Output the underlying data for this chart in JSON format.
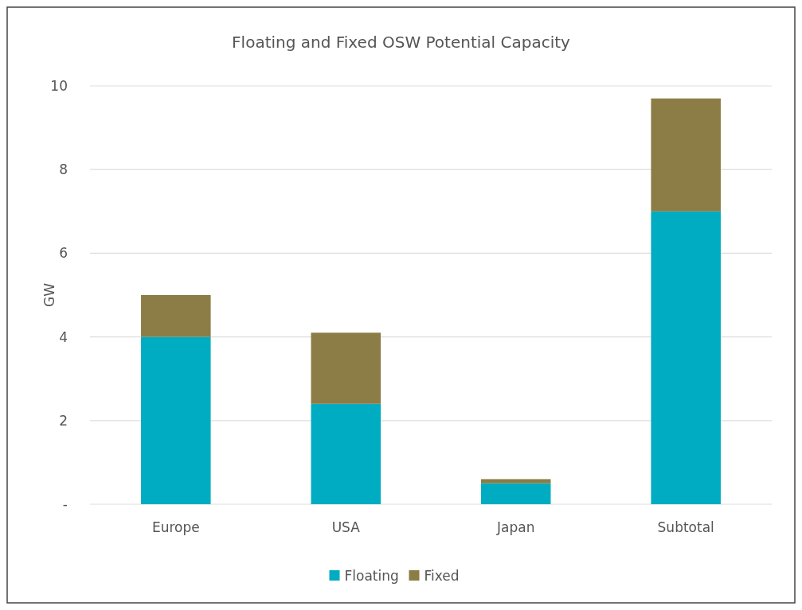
{
  "chart_data": {
    "type": "bar",
    "title": "Floating and Fixed OSW Potential Capacity",
    "ylabel": "GW",
    "categories": [
      "Europe",
      "USA",
      "Japan",
      "Subtotal"
    ],
    "stacked": true,
    "series": [
      {
        "name": "Floating",
        "color": "#00acc1",
        "values": [
          4.0,
          2.4,
          0.5,
          7.0
        ]
      },
      {
        "name": "Fixed",
        "color": "#8b7d45",
        "values": [
          1.0,
          1.7,
          0.1,
          2.7
        ]
      }
    ],
    "ylim": [
      0,
      10
    ],
    "yticks": [
      {
        "value": 0,
        "label": "-"
      },
      2,
      4,
      6,
      8,
      10
    ],
    "grid": "y",
    "legend": "bottom"
  }
}
